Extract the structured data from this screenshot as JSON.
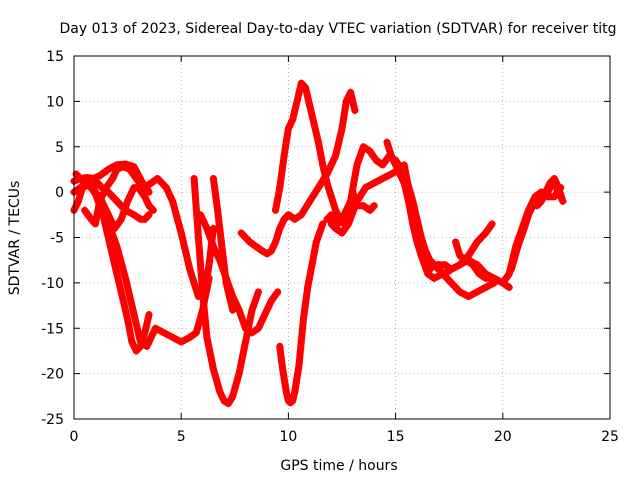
{
  "chart_data": {
    "type": "line",
    "title": "Day 013 of 2023, Sidereal Day-to-day VTEC variation (SDTVAR) for receiver titg",
    "xlabel": "GPS time / hours",
    "ylabel": "SDTVAR / TECUs",
    "xlim": [
      0,
      25
    ],
    "ylim": [
      -25,
      15
    ],
    "xticks": [
      0,
      5,
      10,
      15,
      20,
      25
    ],
    "yticks": [
      -25,
      -20,
      -15,
      -10,
      -5,
      0,
      5,
      10,
      15
    ],
    "grid": true,
    "marker": "plus",
    "series": [
      {
        "color": "#ff0000",
        "x": [
          0.0,
          0.3,
          0.6,
          0.9,
          1.2,
          1.6,
          2.0,
          2.4,
          2.8,
          3.2,
          3.5
        ],
        "y": [
          1.2,
          1.5,
          1.6,
          1.5,
          1.8,
          2.5,
          3.0,
          3.1,
          2.8,
          1.0,
          0.0
        ]
      },
      {
        "color": "#ff0000",
        "x": [
          0.0,
          0.2,
          0.4,
          0.6,
          0.8,
          1.0,
          1.2,
          1.4,
          1.7,
          2.0,
          2.4,
          2.8,
          3.1,
          3.4,
          3.6,
          3.8,
          4.2,
          4.6,
          5.0,
          5.4,
          5.7,
          6.0,
          6.3
        ],
        "y": [
          -2.0,
          -1.0,
          0.5,
          0.8,
          0.5,
          -0.2,
          -1.5,
          -2.5,
          -4.0,
          -6.0,
          -9.5,
          -13.5,
          -16.5,
          -17.0,
          -16.0,
          -15.0,
          -15.5,
          -16.0,
          -16.5,
          -16.0,
          -15.5,
          -13.0,
          -9.5
        ]
      },
      {
        "color": "#ff0000",
        "x": [
          0.0,
          0.3,
          0.6,
          0.9,
          1.1,
          1.3,
          1.6,
          1.9,
          2.2,
          2.5,
          2.7,
          2.9,
          3.1,
          3.3,
          3.5
        ],
        "y": [
          0.0,
          0.5,
          1.0,
          0.5,
          -0.5,
          -2.0,
          -5.0,
          -8.0,
          -11.0,
          -14.0,
          -16.5,
          -17.5,
          -17.0,
          -15.5,
          -13.5
        ]
      },
      {
        "color": "#ff0000",
        "x": [
          0.5,
          0.8,
          1.0,
          1.2,
          1.5,
          1.8,
          2.0,
          2.3,
          2.6,
          3.0,
          3.3,
          3.6,
          3.9,
          4.1,
          4.3,
          4.6,
          5.0,
          5.4,
          5.8,
          6.1,
          6.3,
          6.5
        ],
        "y": [
          -2.0,
          -3.0,
          -3.5,
          -1.0,
          0.5,
          1.5,
          2.5,
          2.8,
          2.5,
          1.2,
          0.5,
          1.0,
          1.5,
          1.0,
          0.5,
          -1.0,
          -4.5,
          -8.5,
          -11.5,
          -11.0,
          -8.0,
          -4.0
        ]
      },
      {
        "color": "#ff0000",
        "x": [
          0.1,
          0.3,
          0.5,
          0.8,
          1.0,
          1.3,
          1.6,
          1.9,
          2.2,
          2.5,
          2.8,
          3.0,
          3.3,
          3.5,
          3.7
        ],
        "y": [
          2.0,
          1.5,
          1.0,
          0.5,
          0.0,
          -1.0,
          -2.5,
          -4.0,
          -3.0,
          -1.0,
          0.5,
          0.5,
          -0.5,
          -1.5,
          -2.0
        ]
      },
      {
        "color": "#ff0000",
        "x": [
          0.9,
          1.1,
          1.3,
          1.6,
          2.0,
          2.4,
          2.8,
          3.1,
          3.3,
          3.5
        ],
        "y": [
          1.5,
          1.0,
          0.5,
          0.0,
          -1.0,
          -2.0,
          -2.5,
          -3.0,
          -3.0,
          -2.5
        ]
      },
      {
        "color": "#ff0000",
        "x": [
          5.6,
          5.8,
          6.0,
          6.2,
          6.5,
          6.8,
          7.0,
          7.2,
          7.4,
          7.7,
          8.0,
          8.3,
          8.6
        ],
        "y": [
          1.5,
          -5.0,
          -11.0,
          -16.0,
          -19.5,
          -22.0,
          -23.0,
          -23.3,
          -22.5,
          -20.0,
          -16.5,
          -13.0,
          -11.0
        ]
      },
      {
        "color": "#ff0000",
        "x": [
          5.9,
          6.2,
          6.5,
          6.8,
          7.1,
          7.4,
          7.7,
          8.0,
          8.3,
          8.6,
          8.9,
          9.2,
          9.5
        ],
        "y": [
          -2.5,
          -4.0,
          -6.0,
          -7.5,
          -9.5,
          -11.5,
          -13.0,
          -15.0,
          -15.5,
          -15.0,
          -13.5,
          -12.0,
          -11.0
        ]
      },
      {
        "color": "#ff0000",
        "x": [
          6.5,
          6.7,
          6.9,
          7.1,
          7.4
        ],
        "y": [
          1.5,
          -2.0,
          -6.0,
          -10.0,
          -13.0
        ]
      },
      {
        "color": "#ff0000",
        "x": [
          7.8,
          8.0,
          8.2,
          8.5,
          8.8,
          9.0,
          9.2,
          9.4,
          9.6,
          9.8,
          10.0,
          10.3,
          10.6,
          11.0,
          11.4,
          11.8,
          12.2,
          12.5,
          12.7,
          12.9,
          13.1
        ],
        "y": [
          -4.5,
          -5.0,
          -5.5,
          -6.0,
          -6.5,
          -6.8,
          -6.5,
          -5.5,
          -4.0,
          -3.0,
          -2.5,
          -3.0,
          -2.5,
          -1.0,
          0.5,
          2.0,
          4.0,
          7.0,
          10.0,
          11.0,
          9.0
        ]
      },
      {
        "color": "#ff0000",
        "x": [
          9.4,
          9.6,
          9.8,
          10.0,
          10.2,
          10.4,
          10.6,
          10.8,
          11.0,
          11.2,
          11.4,
          11.6,
          11.8,
          12.0,
          12.2,
          12.4,
          12.6,
          12.8,
          13.0
        ],
        "y": [
          -2.0,
          0.5,
          4.0,
          7.0,
          8.0,
          10.0,
          12.0,
          11.5,
          9.5,
          7.5,
          5.5,
          3.0,
          1.0,
          -0.5,
          -2.0,
          -3.0,
          -3.5,
          -3.0,
          -2.0
        ]
      },
      {
        "color": "#ff0000",
        "x": [
          9.6,
          9.7,
          9.8,
          9.9,
          10.0,
          10.1,
          10.2,
          10.3,
          10.5,
          10.7,
          10.9,
          11.1,
          11.3,
          11.6
        ],
        "y": [
          -17.0,
          -19.0,
          -20.5,
          -22.0,
          -23.0,
          -23.2,
          -23.0,
          -22.0,
          -19.0,
          -14.0,
          -10.5,
          -8.0,
          -5.5,
          -3.5
        ]
      },
      {
        "color": "#ff0000",
        "x": [
          11.8,
          12.0,
          12.3,
          12.6,
          12.9,
          13.2,
          13.5,
          13.8,
          14.1,
          14.4,
          14.7,
          15.0,
          15.3,
          15.5,
          15.7,
          15.9
        ],
        "y": [
          -3.0,
          -2.5,
          -3.5,
          -2.5,
          -1.0,
          3.0,
          5.0,
          4.5,
          3.5,
          3.0,
          4.0,
          3.5,
          2.5,
          1.0,
          -1.0,
          -2.0
        ]
      },
      {
        "color": "#ff0000",
        "x": [
          12.8,
          13.0,
          13.2,
          13.5,
          13.8,
          14.0
        ],
        "y": [
          -2.5,
          0.0,
          -1.5,
          -1.5,
          -2.0,
          -1.5
        ]
      },
      {
        "color": "#ff0000",
        "x": [
          12.0,
          12.2,
          12.5,
          12.8,
          13.2,
          13.6,
          14.0,
          14.4,
          14.8,
          15.2,
          15.5,
          15.8,
          16.0,
          16.2,
          16.4,
          16.6,
          16.8,
          17.0,
          17.3,
          17.6,
          18.0,
          18.4,
          18.8,
          19.2,
          19.5
        ],
        "y": [
          -3.5,
          -4.0,
          -4.5,
          -3.5,
          -1.0,
          0.5,
          1.0,
          1.5,
          2.0,
          2.5,
          1.5,
          -1.0,
          -3.0,
          -5.0,
          -6.5,
          -7.5,
          -8.0,
          -8.5,
          -9.0,
          -8.5,
          -8.0,
          -7.0,
          -5.5,
          -4.5,
          -3.5
        ]
      },
      {
        "color": "#ff0000",
        "x": [
          14.6,
          14.8,
          15.0,
          15.2,
          15.4,
          15.6,
          15.8,
          16.0,
          16.2,
          16.4,
          16.6,
          16.8,
          17.0,
          17.3,
          17.6,
          18.0,
          18.4,
          18.8,
          19.2,
          19.6,
          20.0,
          20.3
        ],
        "y": [
          5.5,
          4.0,
          3.0,
          2.0,
          1.0,
          -1.0,
          -3.5,
          -5.5,
          -7.0,
          -8.0,
          -8.5,
          -8.0,
          -8.0,
          -8.0,
          -8.5,
          -8.0,
          -7.5,
          -8.0,
          -9.0,
          -9.5,
          -10.0,
          -10.5
        ]
      },
      {
        "color": "#ff0000",
        "x": [
          15.4,
          15.6,
          15.8,
          16.0,
          16.2,
          16.5,
          16.8,
          17.2,
          17.6,
          18.0,
          18.4,
          18.8,
          19.2,
          19.6
        ],
        "y": [
          3.0,
          0.5,
          -2.0,
          -4.5,
          -7.0,
          -9.0,
          -9.5,
          -9.0,
          -10.0,
          -11.0,
          -11.5,
          -11.0,
          -10.5,
          -10.0
        ]
      },
      {
        "color": "#ff0000",
        "x": [
          17.8,
          18.0,
          18.3,
          18.6,
          18.9,
          19.2,
          19.6,
          20.0,
          20.3,
          20.6,
          20.9,
          21.2,
          21.5,
          21.8,
          22.1,
          22.4,
          22.7
        ],
        "y": [
          -5.5,
          -7.0,
          -7.5,
          -8.0,
          -9.0,
          -9.5,
          -9.5,
          -10.0,
          -9.0,
          -6.0,
          -4.0,
          -2.0,
          -0.5,
          0.0,
          -0.5,
          -0.5,
          0.5
        ]
      },
      {
        "color": "#ff0000",
        "x": [
          20.4,
          20.7,
          21.0,
          21.2,
          21.4,
          21.6,
          21.8,
          22.0,
          22.2,
          22.4,
          22.6,
          22.8
        ],
        "y": [
          -8.5,
          -6.0,
          -4.0,
          -2.5,
          -1.5,
          -0.5,
          0.0,
          -0.5,
          0.5,
          1.0,
          0.0,
          -1.0
        ]
      },
      {
        "color": "#ff0000",
        "x": [
          21.6,
          21.8,
          22.0,
          22.2,
          22.4,
          22.6,
          22.8
        ],
        "y": [
          -1.5,
          -1.0,
          0.0,
          1.0,
          1.5,
          0.5,
          -1.0
        ]
      }
    ]
  }
}
